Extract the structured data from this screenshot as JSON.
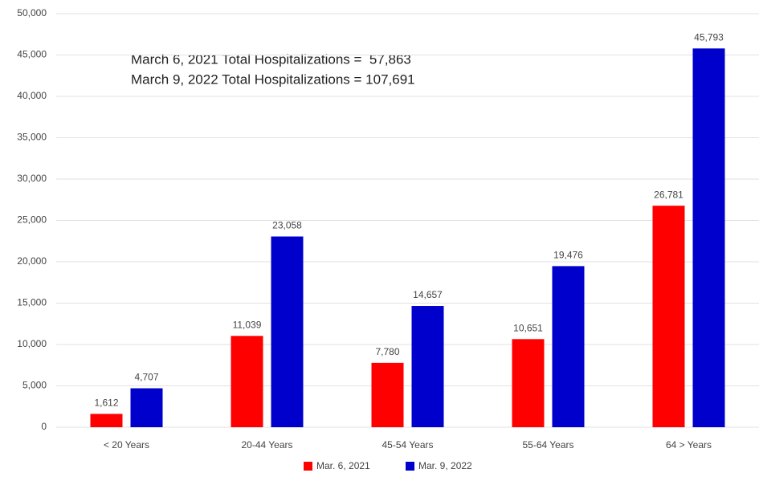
{
  "chart_data": {
    "type": "bar",
    "annotations": [
      "March 6, 2021 Total Hospitalizations =  57,863",
      "March 9, 2022 Total Hospitalizations = 107,691"
    ],
    "categories": [
      "< 20 Years",
      "20-44 Years",
      "45-54 Years",
      "55-64 Years",
      "64 > Years"
    ],
    "series": [
      {
        "name": "Mar. 6, 2021",
        "color": "#ff0000",
        "values": [
          1612,
          11039,
          7780,
          10651,
          26781
        ],
        "value_labels": [
          "1,612",
          "11,039",
          "7,780",
          "10,651",
          "26,781"
        ]
      },
      {
        "name": "Mar. 9, 2022",
        "color": "#0000cc",
        "values": [
          4707,
          23058,
          14657,
          19476,
          45793
        ],
        "value_labels": [
          "4,707",
          "23,058",
          "14,657",
          "19,476",
          "45,793"
        ]
      }
    ],
    "ylim": [
      0,
      50000
    ],
    "yticks": [
      0,
      {
        "value": 5000,
        "label": "5,000"
      },
      {
        "value": 10000,
        "label": "10,000"
      },
      {
        "value": 15000,
        "label": "15,000"
      },
      {
        "value": 20000,
        "label": "20,000"
      },
      {
        "value": 25000,
        "label": "25,000"
      },
      {
        "value": 30000,
        "label": "30,000"
      },
      {
        "value": 35000,
        "label": "35,000"
      },
      {
        "value": 40000,
        "label": "40,000"
      },
      {
        "value": 45000,
        "label": "45,000"
      },
      {
        "value": 50000,
        "label": "50,000"
      }
    ],
    "grid": true,
    "legend": "bottom"
  }
}
